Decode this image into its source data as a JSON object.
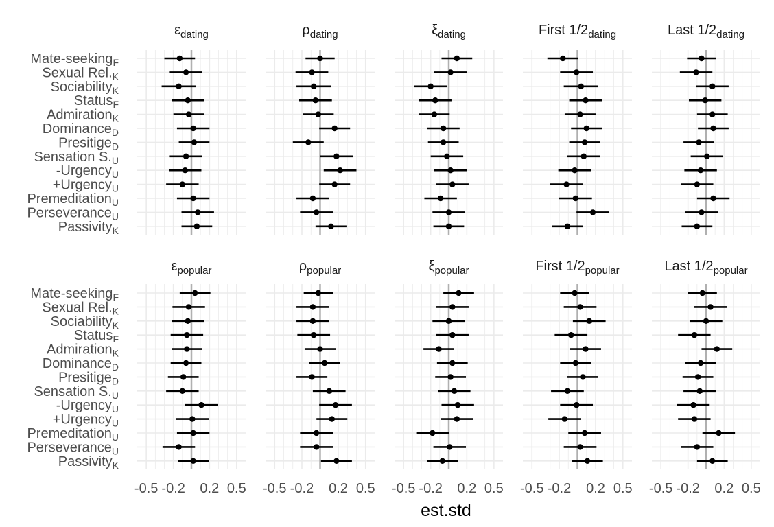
{
  "chart_data": {
    "type": "scatter",
    "subtype": "coefficient forest plot (point estimate with interval), faceted 2 x 5",
    "xlabel": "est.std",
    "xlim": [
      -0.6,
      0.6
    ],
    "xticks": [
      -0.5,
      -0.2,
      0.2,
      0.5
    ],
    "xtick_labels": [
      "-0.5",
      "-0.2",
      "0.2",
      "0.5"
    ],
    "reference_line_x": 0,
    "grid": true,
    "legend": "none",
    "colors": {
      "point": "#000000",
      "interval": "#000000",
      "zero_line": "#b0b0b0",
      "grid": "#ebebeb"
    },
    "predictors": [
      {
        "name": "Mate-seeking",
        "sub": "F"
      },
      {
        "name": "Sexual Rel.",
        "sub": "K"
      },
      {
        "name": "Sociability",
        "sub": "K"
      },
      {
        "name": "Status",
        "sub": "F"
      },
      {
        "name": "Admiration",
        "sub": "K"
      },
      {
        "name": "Dominance",
        "sub": "D"
      },
      {
        "name": "Presitige",
        "sub": "D"
      },
      {
        "name": "Sensation S.",
        "sub": "U"
      },
      {
        "name": "-Urgency",
        "sub": "U"
      },
      {
        "name": "+Urgency",
        "sub": "U"
      },
      {
        "name": "Premeditation",
        "sub": "U"
      },
      {
        "name": "Perseverance",
        "sub": "U"
      },
      {
        "name": "Passivity",
        "sub": "K"
      }
    ],
    "panels": [
      {
        "label": "ε",
        "sub": "dating",
        "greek": true,
        "est": [
          -0.13,
          -0.06,
          -0.14,
          -0.04,
          -0.03,
          0.02,
          0.03,
          -0.06,
          -0.07,
          -0.1,
          0.02,
          0.07,
          0.06
        ],
        "half": [
          0.17,
          0.18,
          0.19,
          0.18,
          0.17,
          0.18,
          0.17,
          0.18,
          0.18,
          0.18,
          0.18,
          0.18,
          0.17
        ]
      },
      {
        "label": "ρ",
        "sub": "dating",
        "greek": true,
        "est": [
          0.0,
          -0.09,
          -0.07,
          -0.05,
          -0.02,
          0.16,
          -0.13,
          0.18,
          0.22,
          0.16,
          -0.08,
          -0.04,
          0.12
        ],
        "half": [
          0.16,
          0.18,
          0.19,
          0.18,
          0.17,
          0.17,
          0.17,
          0.18,
          0.18,
          0.17,
          0.18,
          0.18,
          0.17
        ]
      },
      {
        "label": "ξ",
        "sub": "dating",
        "greek": true,
        "est": [
          0.09,
          0.02,
          -0.2,
          -0.15,
          -0.16,
          -0.06,
          -0.06,
          -0.02,
          0.02,
          0.04,
          -0.09,
          0.0,
          0.0
        ],
        "half": [
          0.17,
          0.18,
          0.18,
          0.18,
          0.17,
          0.18,
          0.17,
          0.18,
          0.18,
          0.18,
          0.18,
          0.18,
          0.17
        ]
      },
      {
        "label": "First 1/2",
        "sub": "dating",
        "greek": false,
        "est": [
          -0.16,
          -0.01,
          0.04,
          0.09,
          0.03,
          0.1,
          0.08,
          0.07,
          -0.03,
          -0.12,
          -0.02,
          0.17,
          -0.11
        ],
        "half": [
          0.17,
          0.18,
          0.19,
          0.18,
          0.17,
          0.17,
          0.17,
          0.18,
          0.18,
          0.18,
          0.18,
          0.18,
          0.17
        ]
      },
      {
        "label": "Last 1/2",
        "sub": "dating",
        "greek": false,
        "est": [
          -0.05,
          -0.11,
          0.07,
          -0.01,
          0.07,
          0.08,
          -0.08,
          0.01,
          -0.06,
          -0.1,
          0.08,
          -0.05,
          -0.1
        ],
        "half": [
          0.16,
          0.18,
          0.18,
          0.18,
          0.17,
          0.17,
          0.17,
          0.18,
          0.18,
          0.18,
          0.18,
          0.18,
          0.17
        ]
      },
      {
        "label": "ε",
        "sub": "popular",
        "greek": true,
        "est": [
          0.04,
          -0.03,
          -0.04,
          -0.05,
          -0.05,
          -0.06,
          -0.09,
          -0.1,
          0.11,
          0.01,
          0.02,
          -0.14,
          0.02
        ],
        "half": [
          0.17,
          0.18,
          0.18,
          0.18,
          0.17,
          0.17,
          0.17,
          0.18,
          0.18,
          0.18,
          0.18,
          0.18,
          0.17
        ]
      },
      {
        "label": "ρ",
        "sub": "popular",
        "greek": true,
        "est": [
          -0.02,
          -0.08,
          -0.08,
          -0.07,
          0.0,
          0.05,
          -0.09,
          0.1,
          0.17,
          0.13,
          -0.04,
          -0.04,
          0.18
        ],
        "half": [
          0.16,
          0.18,
          0.18,
          0.18,
          0.17,
          0.17,
          0.17,
          0.18,
          0.18,
          0.17,
          0.18,
          0.18,
          0.17
        ]
      },
      {
        "label": "ξ",
        "sub": "popular",
        "greek": true,
        "est": [
          0.11,
          0.04,
          0.0,
          0.04,
          -0.11,
          0.04,
          0.02,
          0.06,
          0.1,
          0.09,
          -0.18,
          0.01,
          -0.07
        ],
        "half": [
          0.17,
          0.18,
          0.18,
          0.18,
          0.17,
          0.17,
          0.17,
          0.18,
          0.18,
          0.18,
          0.18,
          0.18,
          0.17
        ]
      },
      {
        "label": "First 1/2",
        "sub": "popular",
        "greek": false,
        "est": [
          -0.03,
          0.03,
          0.13,
          -0.07,
          0.09,
          -0.02,
          0.06,
          -0.11,
          -0.01,
          -0.14,
          0.08,
          0.03,
          0.11
        ],
        "half": [
          0.16,
          0.18,
          0.18,
          0.18,
          0.17,
          0.17,
          0.17,
          0.18,
          0.18,
          0.18,
          0.18,
          0.18,
          0.17
        ]
      },
      {
        "label": "Last 1/2",
        "sub": "popular",
        "greek": false,
        "est": [
          -0.04,
          0.05,
          0.0,
          -0.13,
          0.12,
          -0.06,
          -0.09,
          -0.07,
          -0.14,
          -0.13,
          0.14,
          -0.1,
          0.07
        ],
        "half": [
          0.16,
          0.18,
          0.18,
          0.18,
          0.17,
          0.17,
          0.17,
          0.18,
          0.18,
          0.18,
          0.18,
          0.18,
          0.17
        ]
      }
    ]
  }
}
